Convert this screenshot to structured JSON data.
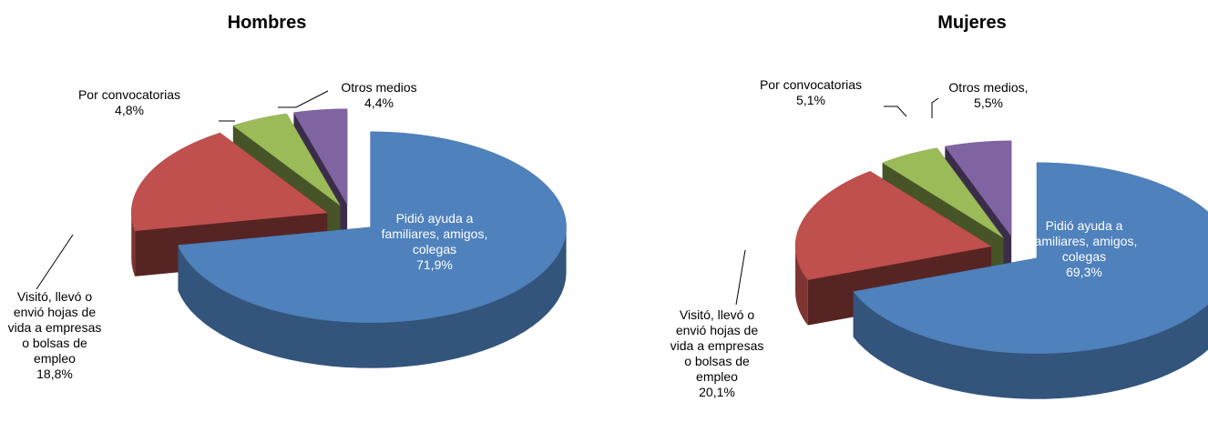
{
  "chart_data": [
    {
      "type": "pie",
      "title": "Hombres",
      "categories": [
        "Pidió ayuda a familiares, amigos, colegas",
        "Visitó, llevó o envió hojas de vida a empresas o bolsas de empleo",
        "Por convocatorias",
        "Otros medios"
      ],
      "values": [
        71.9,
        18.8,
        4.8,
        4.4
      ],
      "value_labels": [
        "71,9%",
        "18,8%",
        "4,8%",
        "4,4%"
      ],
      "colors": [
        "#4f81bd",
        "#c0504d",
        "#9bbb59",
        "#8064a2"
      ]
    },
    {
      "type": "pie",
      "title": "Mujeres",
      "categories": [
        "Pidió ayuda a familiares, amigos, colegas",
        "Visitó, llevó o envió hojas de vida a empresas o bolsas de empleo",
        "Por convocatorias",
        "Otros medios,"
      ],
      "values": [
        69.3,
        20.1,
        5.1,
        5.5
      ],
      "value_labels": [
        "69,3%",
        "20,1%",
        "5,1%",
        "5,5%"
      ],
      "colors": [
        "#4f81bd",
        "#c0504d",
        "#9bbb59",
        "#8064a2"
      ]
    }
  ]
}
